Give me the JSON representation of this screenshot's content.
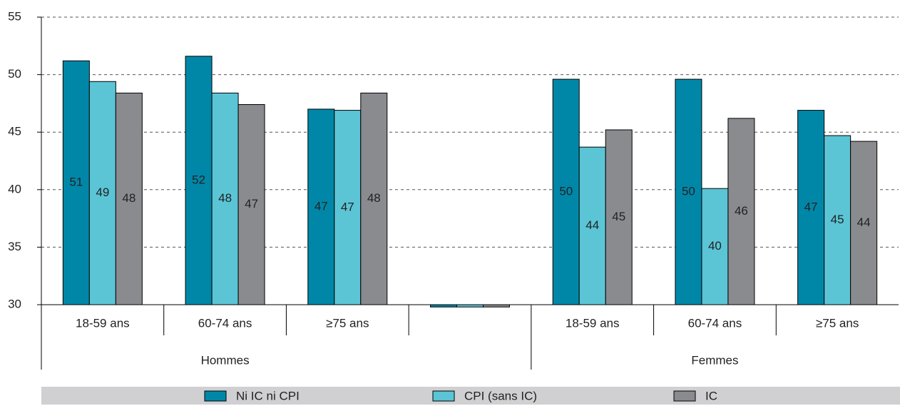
{
  "chart_data": {
    "type": "bar",
    "categories": [
      "18-59 ans",
      "60-74 ans",
      "≥75 ans",
      null,
      "18-59 ans",
      "60-74 ans",
      "≥75 ans"
    ],
    "group_labels": [
      "Hommes",
      "Femmes"
    ],
    "series": [
      {
        "name": "Ni IC ni CPI",
        "color": "#0087a8",
        "values": [
          51.2,
          51.6,
          47.0,
          29.8,
          49.6,
          49.6,
          46.9
        ],
        "value_labels": [
          "51",
          "52",
          "47",
          null,
          "50",
          "50",
          "47"
        ]
      },
      {
        "name": "CPI (sans IC)",
        "color": "#5bc5d6",
        "values": [
          49.4,
          48.4,
          46.9,
          29.8,
          43.7,
          40.1,
          44.7
        ],
        "value_labels": [
          "49",
          "48",
          "47",
          null,
          "44",
          "40",
          "45"
        ]
      },
      {
        "name": "IC",
        "color": "#8a8b8f",
        "values": [
          48.4,
          47.4,
          48.4,
          29.8,
          45.2,
          46.2,
          44.2
        ],
        "value_labels": [
          "48",
          "47",
          "48",
          null,
          "45",
          "46",
          "44"
        ]
      }
    ],
    "ylim": [
      30,
      55
    ],
    "yticks": [
      30,
      35,
      40,
      45,
      50,
      55
    ],
    "grid": true
  }
}
